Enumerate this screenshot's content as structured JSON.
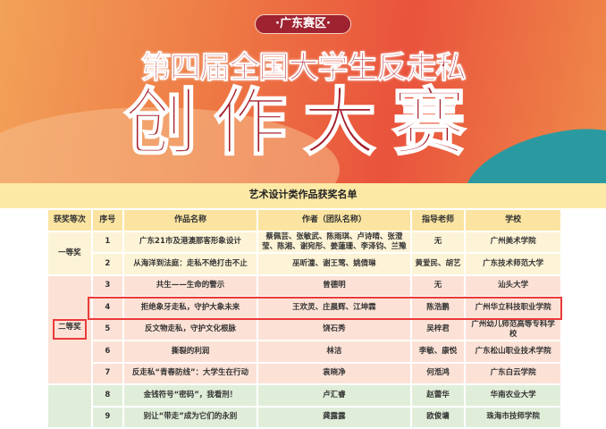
{
  "banner": {
    "region": "·广东赛区·",
    "title_line1": "第四届全国大学生反走私",
    "title_line2": "创作大赛"
  },
  "list_title": "艺术设计类作品获奖名单",
  "table": {
    "headers": [
      "获奖等次",
      "序号",
      "作品名称",
      "作者（团队名称）",
      "指导老师",
      "学校"
    ],
    "groups": [
      {
        "rank": "一等奖",
        "rows": [
          {
            "no": "1",
            "work": "广东21市及港澳那客形象设计",
            "author": "蔡佩芸、张敏武、陈雨琪、卢诗晴、张澄莹、陈湘、谢宛彤、姜蓮珊、李泽钧、兰豫",
            "teacher": "无",
            "school": "广州美术学院"
          },
          {
            "no": "2",
            "work": "从海洋到法庭：走私不绝打击不止",
            "author": "巫昕潼、谢王莺、姚倩琳",
            "teacher": "黄爱民、胡艺",
            "school": "广东技术师范大学"
          }
        ]
      },
      {
        "rank": "二等奖",
        "rows": [
          {
            "no": "3",
            "work": "共生——生命的警示",
            "author": "曾德明",
            "teacher": "无",
            "school": "汕头大学"
          },
          {
            "no": "4",
            "work": "拒绝象牙走私，守护大象未来",
            "author": "王欢灵、庄晨辉、江坤霖",
            "teacher": "陈浩鹏",
            "school": "广州华立科技职业学院"
          },
          {
            "no": "5",
            "work": "反文物走私，守护文化根脉",
            "author": "饶石秀",
            "teacher": "吴梓君",
            "school": "广州幼儿师范高等专科学校"
          },
          {
            "no": "6",
            "work": "撕裂的利润",
            "author": "林洁",
            "teacher": "李敏、康悦",
            "school": "广东松山职业技术学院"
          },
          {
            "no": "7",
            "work": "反走私“青春防线”：大学生在行动",
            "author": "袁晓净",
            "teacher": "何湉鸿",
            "school": "广东白云学院"
          }
        ]
      },
      {
        "rank": "",
        "rows": [
          {
            "no": "8",
            "work": "金钱符号“密码”，我看刑！",
            "author": "卢汇睿",
            "teacher": "赵蕾华",
            "school": "华南农业大学"
          },
          {
            "no": "9",
            "work": "别让“带走”成为它们的永别",
            "author": "龚露露",
            "teacher": "欧俊墉",
            "school": "珠海市技师学院"
          }
        ]
      }
    ]
  },
  "colors": {
    "highlight": "#ea3b3b",
    "first": "#fdf3d6",
    "second": "#fce2d6",
    "third": "#e0eed9",
    "header": "#fbe4a1"
  }
}
